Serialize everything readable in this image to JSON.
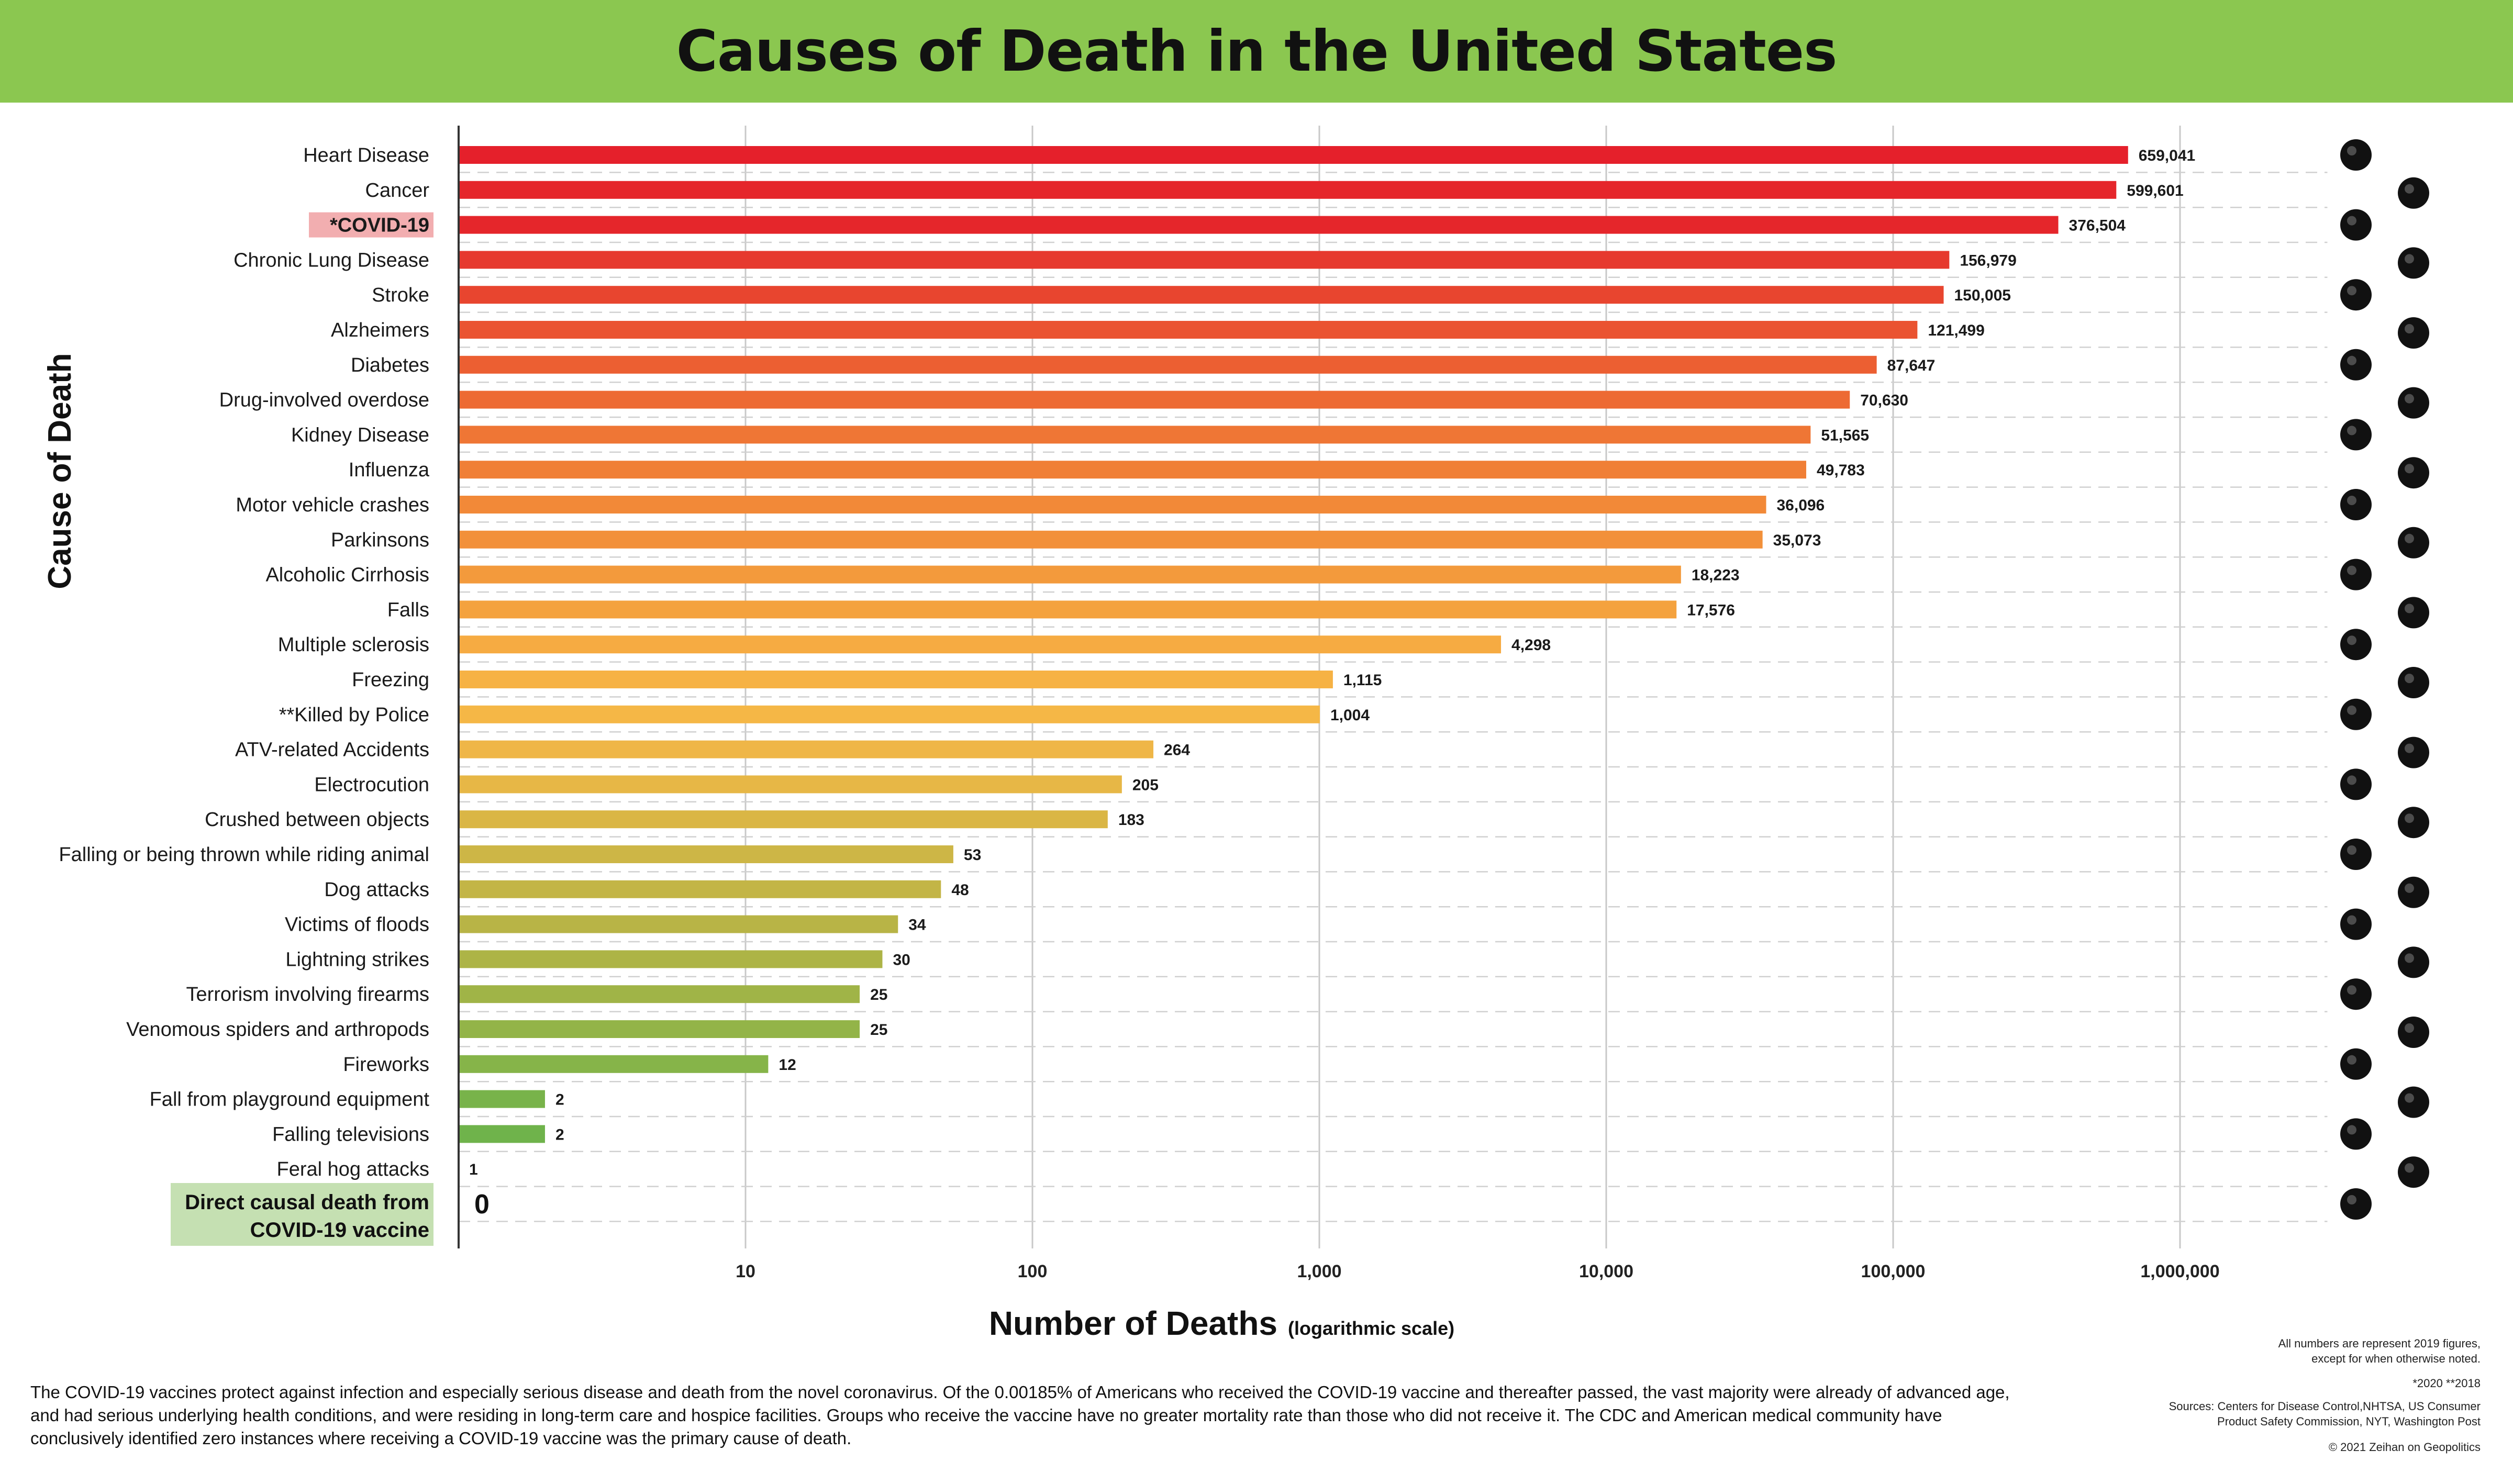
{
  "header": {
    "title": "Causes of Death in the United States"
  },
  "chart_data": {
    "type": "bar",
    "orientation": "horizontal",
    "title": "Causes of Death in the United States",
    "xlabel": "Number of Deaths",
    "xlabel_note": "(logarithmic scale)",
    "ylabel": "Cause of Death",
    "xscale": "log",
    "xlim": [
      1,
      3000000
    ],
    "grid": true,
    "x_ticks": [
      10,
      100,
      1000,
      10000,
      100000,
      1000000
    ],
    "x_tick_labels": [
      "10",
      "100",
      "1,000",
      "10,000",
      "100,000",
      "1,000,000"
    ],
    "categories": [
      "Heart Disease",
      "Cancer",
      "*COVID-19",
      "Chronic Lung Disease",
      "Stroke",
      "Alzheimers",
      "Diabetes",
      "Drug-involved overdose",
      "Kidney Disease",
      "Influenza",
      "Motor vehicle crashes",
      "Parkinsons",
      "Alcoholic Cirrhosis",
      "Falls",
      "Multiple sclerosis",
      "Freezing",
      "**Killed by Police",
      "ATV-related Accidents",
      "Electrocution",
      "Crushed between objects",
      "Falling or being thrown while riding animal",
      "Dog attacks",
      "Victims of floods",
      "Lightning strikes",
      "Terrorism involving firearms",
      "Venomous spiders and arthropods",
      "Fireworks",
      "Fall from playground equipment",
      "Falling televisions",
      "Feral hog attacks",
      "Direct causal death from COVID-19 vaccine"
    ],
    "values": [
      659041,
      599601,
      376504,
      156979,
      150005,
      121499,
      87647,
      70630,
      51565,
      49783,
      36096,
      35073,
      18223,
      17576,
      4298,
      1115,
      1004,
      264,
      205,
      183,
      53,
      48,
      34,
      30,
      25,
      25,
      12,
      2,
      2,
      1,
      0
    ],
    "value_labels": [
      "659,041",
      "599,601",
      "376,504",
      "156,979",
      "150,005",
      "121,499",
      "87,647",
      "70,630",
      "51,565",
      "49,783",
      "36,096",
      "35,073",
      "18,223",
      "17,576",
      "4,298",
      "1,115",
      "1,004",
      "264",
      "205",
      "183",
      "53",
      "48",
      "34",
      "30",
      "25",
      "25",
      "12",
      "2",
      "2",
      "1",
      "0"
    ],
    "colors": [
      "#e5202b",
      "#e5262b",
      "#e5262b",
      "#e6392e",
      "#e8452f",
      "#ea5331",
      "#ec5f32",
      "#ed6a33",
      "#ef7635",
      "#f07f36",
      "#f28938",
      "#f2903a",
      "#f39a3c",
      "#f4a23e",
      "#f6ab42",
      "#f6b244",
      "#f5b746",
      "#efb647",
      "#e7b746",
      "#dab645",
      "#cdb646",
      "#c3b546",
      "#b8b446",
      "#adb446",
      "#a0b447",
      "#93b448",
      "#86b449",
      "#78b34a",
      "#6fb34b",
      "#66b34b",
      "#66b34b"
    ],
    "highlighted": {
      "*COVID-19": "#f2aeb0",
      "Direct causal death from COVID-19 vaccine": "#c5e0b2"
    },
    "icons": [
      "heart-pulse-icon",
      "virus-cell-icon",
      "coronavirus-icon",
      "lungs-icon",
      "brain-icon",
      "elderly-couple-icon",
      "glucose-meter-icon",
      "syringe-pill-icon",
      "kidneys-icon",
      "sick-person-coughing-icon",
      "car-crash-icon",
      "person-tremor-icon",
      "liver-bottle-icon",
      "person-slipping-icon",
      "person-with-cane-icon",
      "snowflake-icon",
      "police-officer-icon",
      "atv-rider-icon",
      "electric-shock-icon",
      "crushed-worker-icon",
      "horse-icon",
      "dog-head-icon",
      "flooded-house-icon",
      "lightning-strike-person-icon",
      "handgun-icon",
      "spider-icon",
      "firework-rocket-icon",
      "playground-slide-icon",
      "television-icon",
      "wild-hog-icon",
      "vaccine-syringe-icon"
    ]
  },
  "footer": {
    "description": "The COVID-19 vaccines protect against infection and especially serious disease and death from the novel coronavirus. Of the 0.00185% of Americans who received the COVID-19 vaccine and thereafter passed, the vast majority were already of advanced age, and had serious underlying health conditions, and were residing in long-term care and hospice facilities. Groups who receive the vaccine have no greater mortality rate than those who did not receive it. The CDC and American medical community have conclusively identified zero instances where receiving a COVID-19 vaccine was the primary cause of death.",
    "note_numbers_line1": "All numbers are represent 2019 figures,",
    "note_numbers_line2": "except for when otherwise noted.",
    "note_years": "*2020   **2018",
    "sources_line1": "Sources: Centers for Disease Control,NHTSA, US Consumer",
    "sources_line2": "Product Safety Commission, NYT, Washington Post",
    "copyright": "© 2021 Zeihan on Geopolitics"
  }
}
